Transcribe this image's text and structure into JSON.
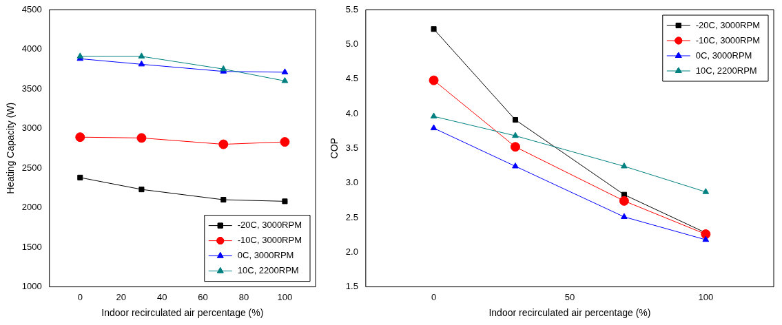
{
  "chart_data": [
    {
      "type": "line",
      "xlabel": "Indoor recirculated air percentage (%)",
      "ylabel": "Heating Capacity (W)",
      "x": [
        0,
        30,
        70,
        100
      ],
      "xlim": [
        -15,
        115
      ],
      "xticks": [
        0,
        20,
        40,
        60,
        80,
        100
      ],
      "ylim": [
        1000,
        4500
      ],
      "yticks": [
        1000,
        1500,
        2000,
        2500,
        3000,
        3500,
        4000,
        4500
      ],
      "grid": false,
      "legend": "bottom right",
      "series": [
        {
          "name": "-20C, 3000RPM",
          "color": "#000000",
          "marker": "square",
          "values": [
            2380,
            2230,
            2100,
            2080
          ]
        },
        {
          "name": "-10C, 3000RPM",
          "color": "#ff0000",
          "marker": "circle",
          "values": [
            2890,
            2880,
            2800,
            2830
          ]
        },
        {
          "name": "0C, 3000RPM",
          "color": "#0000ff",
          "marker": "triangle",
          "values": [
            3880,
            3810,
            3720,
            3710
          ]
        },
        {
          "name": "10C, 2200RPM",
          "color": "#008080",
          "marker": "triangle",
          "values": [
            3910,
            3910,
            3750,
            3600
          ]
        }
      ]
    },
    {
      "type": "line",
      "xlabel": "Indoor recirculated air percentage (%)",
      "ylabel": "COP",
      "x": [
        0,
        30,
        70,
        100
      ],
      "xlim": [
        -25,
        125
      ],
      "xticks": [
        0,
        50,
        100
      ],
      "ylim": [
        1.5,
        5.5
      ],
      "yticks": [
        {
          "value": 1.5,
          "label": "1.5"
        },
        {
          "value": 2,
          "label": "2.0"
        },
        {
          "value": 2.5,
          "label": "2.5"
        },
        {
          "value": 3,
          "label": "3.0"
        },
        {
          "value": 3.5,
          "label": "3.5"
        },
        {
          "value": 4,
          "label": "4.0"
        },
        {
          "value": 4.5,
          "label": "4.5"
        },
        {
          "value": 5,
          "label": "5.0"
        },
        {
          "value": 5.5,
          "label": "5.5"
        }
      ],
      "grid": false,
      "legend": "top right",
      "series": [
        {
          "name": "-20C, 3000RPM",
          "color": "#000000",
          "marker": "square",
          "values": [
            5.22,
            3.91,
            2.83,
            2.28
          ]
        },
        {
          "name": "-10C, 3000RPM",
          "color": "#ff0000",
          "marker": "circle",
          "values": [
            4.48,
            3.52,
            2.74,
            2.26
          ]
        },
        {
          "name": "0C, 3000RPM",
          "color": "#0000ff",
          "marker": "triangle",
          "values": [
            3.79,
            3.24,
            2.51,
            2.18
          ]
        },
        {
          "name": "10C, 2200RPM",
          "color": "#008080",
          "marker": "triangle",
          "values": [
            3.96,
            3.68,
            3.24,
            2.87
          ]
        }
      ]
    }
  ]
}
